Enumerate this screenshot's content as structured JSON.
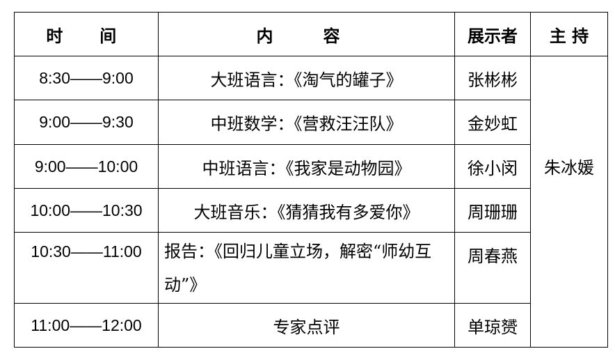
{
  "headers": {
    "time": "时　间",
    "content": "内　容",
    "presenter": "展示者",
    "host": "主 持"
  },
  "rows": [
    {
      "time": "8:30——9:00",
      "content": "大班语言：《淘气的罐子》",
      "presenter": "张彬彬"
    },
    {
      "time": "9:00——9:30",
      "content": "中班数学：《营救汪汪队》",
      "presenter": "金妙虹"
    },
    {
      "time": "9:00——10:00",
      "content": "中班语言：《我家是动物园》",
      "presenter": "徐小闵"
    },
    {
      "time": "10:00——10:30",
      "content": "大班音乐：《猜猜我有多爱你》",
      "presenter": "周珊珊"
    },
    {
      "time": "10:30——11:00",
      "content": "报告：《回归儿童立场，解密“师幼互动”》",
      "presenter": "周春燕"
    },
    {
      "time": "11:00——12:00",
      "content": "专家点评",
      "presenter": "单琼赟"
    }
  ],
  "host": "朱冰媛"
}
